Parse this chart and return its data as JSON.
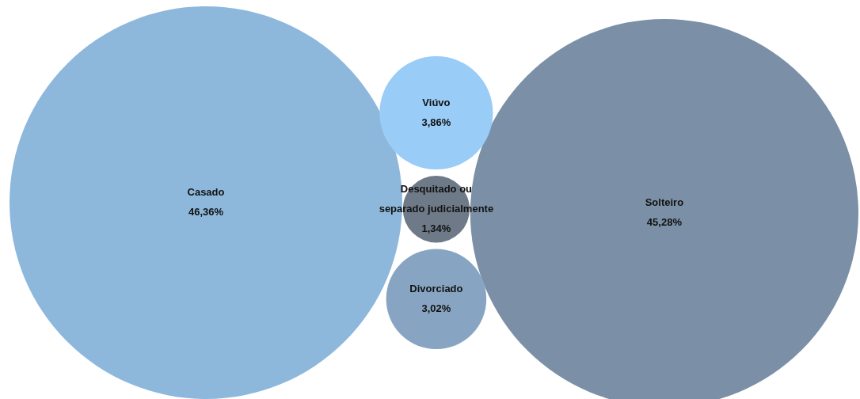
{
  "chart_data": {
    "type": "other",
    "categories": [
      "Casado",
      "Solteiro",
      "Viúvo",
      "Desquitado ou\nseparado judicialmente",
      "Divorciado"
    ],
    "values": [
      46.36,
      45.28,
      3.86,
      1.34,
      3.02
    ],
    "value_labels": [
      "46,36%",
      "45,28%",
      "3,86%",
      "1,34%",
      "3,02%"
    ],
    "colors": [
      "#8db8dc",
      "#7b90a6",
      "#99ccf7",
      "#6e7a88",
      "#87a5c2"
    ]
  }
}
